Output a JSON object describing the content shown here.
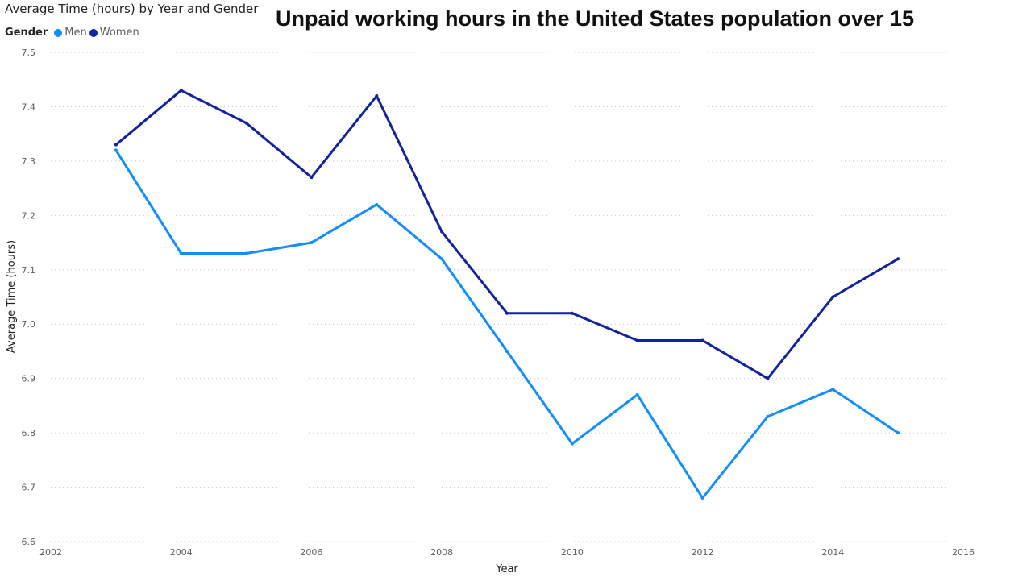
{
  "header": {
    "visual_title": "Average Time (hours) by Year and Gender",
    "report_title": "Unpaid working hours in the United States population over 15"
  },
  "legend": {
    "title": "Gender",
    "items": [
      {
        "label": "Men",
        "color": "#118DFF"
      },
      {
        "label": "Women",
        "color": "#12239E"
      }
    ]
  },
  "chart_data": {
    "type": "line",
    "xlabel": "Year",
    "ylabel": "Average Time (hours)",
    "xlim": [
      2002,
      2016
    ],
    "ylim": [
      6.6,
      7.5
    ],
    "x_ticks": [
      2002,
      2004,
      2006,
      2008,
      2010,
      2012,
      2014,
      2016
    ],
    "y_ticks": [
      6.6,
      6.7,
      6.8,
      6.9,
      7.0,
      7.1,
      7.2,
      7.3,
      7.4,
      7.5
    ],
    "grid": "horizontal dotted",
    "legend_position": "top-left",
    "x": [
      2003,
      2004,
      2005,
      2006,
      2007,
      2008,
      2009,
      2010,
      2011,
      2012,
      2013,
      2014,
      2015
    ],
    "series": [
      {
        "name": "Men",
        "color": "#118DFF",
        "values": [
          7.32,
          7.13,
          7.13,
          7.15,
          7.22,
          7.12,
          6.95,
          6.78,
          6.87,
          6.68,
          6.83,
          6.88,
          6.8
        ]
      },
      {
        "name": "Women",
        "color": "#12239E",
        "values": [
          7.33,
          7.43,
          7.37,
          7.27,
          7.42,
          7.17,
          7.02,
          7.02,
          6.97,
          6.97,
          6.9,
          7.05,
          7.12
        ]
      }
    ]
  }
}
